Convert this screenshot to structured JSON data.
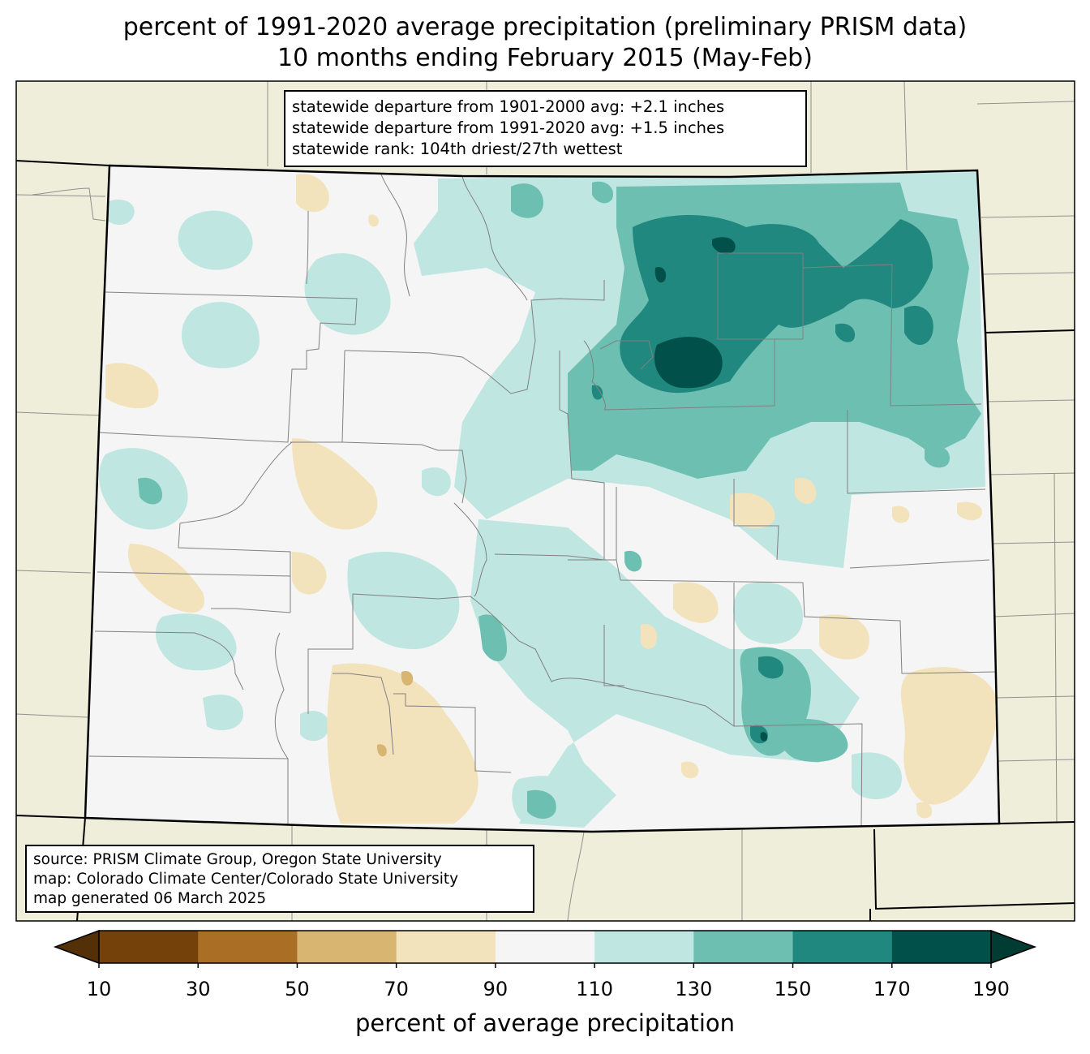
{
  "title": {
    "line1": "percent of 1991-2020 average precipitation (preliminary PRISM data)",
    "line2": "10 months ending February 2015 (May-Feb)"
  },
  "stats": {
    "line1": "statewide departure from 1901-2000 avg: +2.1 inches",
    "line2": "statewide departure from 1991-2020 avg: +1.5 inches",
    "line3": "statewide rank: 104th driest/27th wettest"
  },
  "source": {
    "line1": "source: PRISM Climate Group, Oregon State University",
    "line2": "map: Colorado Climate Center/Colorado State University",
    "line3": "map generated 06 March 2025"
  },
  "colorbar": {
    "label": "percent of average precipitation",
    "ticks": [
      "10",
      "30",
      "50",
      "70",
      "90",
      "110",
      "130",
      "150",
      "170",
      "190"
    ],
    "bins": [
      {
        "range": "10-30",
        "color": "#734109"
      },
      {
        "range": "30-50",
        "color": "#aa6f25"
      },
      {
        "range": "50-70",
        "color": "#d9b572"
      },
      {
        "range": "70-90",
        "color": "#f3e3bd"
      },
      {
        "range": "90-110",
        "color": "#f4f5f4"
      },
      {
        "range": "110-130",
        "color": "#bfe6e0"
      },
      {
        "range": "130-150",
        "color": "#6dbfb1"
      },
      {
        "range": "150-170",
        "color": "#218880"
      },
      {
        "range": "170-190",
        "color": "#01514a"
      }
    ],
    "under_color": "#533007",
    "over_color": "#013c33"
  },
  "map": {
    "region": "Colorado",
    "background_color": "#efeedb",
    "state_fill_color": "#f4f5f4"
  }
}
